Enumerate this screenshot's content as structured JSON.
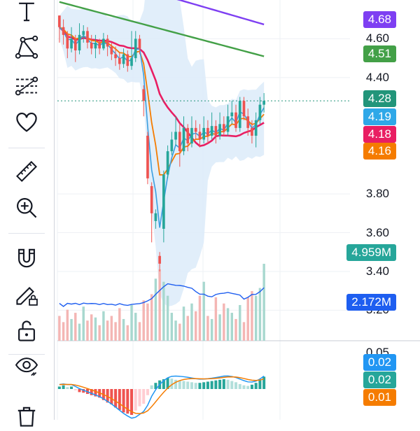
{
  "toolbar": {
    "tools": [
      {
        "name": "text-tool",
        "icon": "text-icon"
      },
      {
        "name": "pattern-tool",
        "icon": "pattern-icon"
      },
      {
        "name": "fib-tool",
        "icon": "fib-retracement-icon"
      },
      {
        "name": "favorites-tool",
        "icon": "heart-icon"
      },
      {
        "name": "measure-tool",
        "icon": "ruler-icon"
      },
      {
        "name": "zoom-tool",
        "icon": "zoom-in-icon"
      },
      {
        "name": "magnet-tool",
        "icon": "magnet-icon"
      },
      {
        "name": "lock-drawings-tool",
        "icon": "pencil-lock-icon"
      },
      {
        "name": "lock-all-tool",
        "icon": "unlock-icon"
      },
      {
        "name": "visibility-tool",
        "icon": "eye-icon"
      },
      {
        "name": "remove-tool",
        "icon": "trash-icon"
      }
    ]
  },
  "price_axis": {
    "ticks": [
      "4.60",
      "4.40",
      "3.80",
      "3.60",
      "3.40",
      "3.20"
    ],
    "tick_values": [
      4.6,
      4.4,
      3.8,
      3.6,
      3.4,
      3.2
    ],
    "range": [
      3.14,
      4.8
    ],
    "cut_label": "0.05"
  },
  "badges": [
    {
      "label": "4.68",
      "color": "#7e3ff2",
      "series": "upper-ma"
    },
    {
      "label": "4.51",
      "color": "#43a047",
      "series": "mid-ma"
    },
    {
      "label": "4.28",
      "color": "#22957a",
      "series": "last-price"
    },
    {
      "label": "4.19",
      "color": "#2fa8e8",
      "series": "fast-ma"
    },
    {
      "label": "4.18",
      "color": "#e91e63",
      "series": "slow-ma"
    },
    {
      "label": "4.16",
      "color": "#f57c00",
      "series": "orange-ma"
    },
    {
      "label": "4.959M",
      "color": "#26a69a",
      "series": "volume"
    },
    {
      "label": "2.172M",
      "color": "#1e5ef0",
      "series": "volume-ma"
    },
    {
      "label": "0.02",
      "color": "#2196f3",
      "series": "macd"
    },
    {
      "label": "0.02",
      "color": "#26a69a",
      "series": "histogram"
    },
    {
      "label": "0.01",
      "color": "#f57c00",
      "series": "signal"
    }
  ],
  "colors": {
    "up": "#26a69a",
    "down": "#ef5350",
    "band_fill": "#dcebf9",
    "purple_ma": "#7e3ff2",
    "green_ma": "#43a047",
    "red_ma": "#e91e63",
    "blue_ma": "#3b9fe0",
    "orange_ma": "#f57c00",
    "volume_ma": "#1e5ef0",
    "last_price_line": "#22957a"
  },
  "chart_data": {
    "type": "candlestick",
    "y_range": [
      3.14,
      4.8
    ],
    "last_price": 4.28,
    "candles": [
      [
        4.72,
        4.66,
        4.72,
        4.58
      ],
      [
        4.66,
        4.62,
        4.7,
        4.57
      ],
      [
        4.62,
        4.55,
        4.64,
        4.5
      ],
      [
        4.55,
        4.6,
        4.66,
        4.53
      ],
      [
        4.6,
        4.54,
        4.62,
        4.48
      ],
      [
        4.54,
        4.62,
        4.68,
        4.52
      ],
      [
        4.62,
        4.64,
        4.67,
        4.58
      ],
      [
        4.64,
        4.58,
        4.66,
        4.55
      ],
      [
        4.58,
        4.55,
        4.62,
        4.52
      ],
      [
        4.55,
        4.58,
        4.62,
        4.5
      ],
      [
        4.58,
        4.55,
        4.6,
        4.52
      ],
      [
        4.55,
        4.6,
        4.63,
        4.54
      ],
      [
        4.6,
        4.56,
        4.62,
        4.51
      ],
      [
        4.56,
        4.52,
        4.58,
        4.49
      ],
      [
        4.52,
        4.5,
        4.56,
        4.46
      ],
      [
        4.5,
        4.47,
        4.53,
        4.44
      ],
      [
        4.47,
        4.52,
        4.55,
        4.45
      ],
      [
        4.52,
        4.46,
        4.54,
        4.43
      ],
      [
        4.46,
        4.5,
        4.64,
        4.44
      ],
      [
        4.5,
        4.6,
        4.64,
        4.48
      ],
      [
        4.6,
        4.55,
        4.62,
        4.52
      ],
      [
        4.34,
        4.28,
        4.36,
        4.2
      ],
      [
        4.1,
        3.88,
        4.12,
        3.85
      ],
      [
        3.84,
        3.7,
        3.86,
        3.55
      ],
      [
        3.66,
        3.7,
        3.72,
        3.62
      ],
      [
        3.48,
        3.44,
        3.5,
        3.4
      ],
      [
        3.62,
        3.9,
        3.92,
        3.55
      ],
      [
        3.9,
        4.02,
        4.05,
        3.88
      ],
      [
        4.02,
        4.08,
        4.12,
        4.0
      ],
      [
        4.08,
        4.12,
        4.2,
        4.05
      ],
      [
        4.12,
        4.02,
        4.16,
        3.94
      ],
      [
        4.02,
        4.14,
        4.2,
        4.0
      ],
      [
        4.14,
        4.06,
        4.16,
        4.02
      ],
      [
        4.06,
        4.14,
        4.2,
        4.04
      ],
      [
        4.14,
        4.12,
        4.18,
        4.08
      ],
      [
        4.12,
        4.08,
        4.16,
        4.04
      ],
      [
        4.08,
        4.14,
        4.2,
        4.06
      ],
      [
        4.14,
        4.1,
        4.18,
        4.06
      ],
      [
        4.1,
        4.15,
        4.22,
        4.08
      ],
      [
        4.15,
        4.1,
        4.18,
        4.06
      ],
      [
        4.1,
        4.16,
        4.22,
        4.08
      ],
      [
        4.16,
        4.12,
        4.2,
        4.1
      ],
      [
        4.12,
        4.2,
        4.26,
        4.1
      ],
      [
        4.2,
        4.22,
        4.28,
        4.16
      ],
      [
        4.22,
        4.14,
        4.26,
        4.12
      ],
      [
        4.14,
        4.28,
        4.3,
        4.12
      ],
      [
        4.28,
        4.2,
        4.3,
        4.18
      ],
      [
        4.2,
        4.14,
        4.24,
        4.1
      ],
      [
        4.14,
        4.1,
        4.18,
        4.06
      ],
      [
        4.1,
        4.18,
        4.22,
        4.04
      ],
      [
        4.18,
        4.26,
        4.3,
        4.16
      ],
      [
        4.26,
        4.28,
        4.32,
        4.22
      ]
    ],
    "volume_range": [
      0,
      4.959
    ],
    "volume": [
      1.6,
      1.2,
      2.0,
      1.4,
      1.8,
      1.1,
      2.2,
      1.3,
      1.7,
      1.5,
      1.0,
      1.9,
      1.3,
      1.6,
      1.2,
      2.1,
      1.4,
      1.0,
      2.3,
      1.8,
      1.2,
      2.6,
      2.4,
      3.0,
      4.0,
      4.6,
      3.8,
      2.9,
      1.8,
      1.3,
      1.1,
      2.2,
      1.6,
      2.4,
      1.9,
      2.9,
      3.8,
      1.6,
      1.4,
      2.8,
      1.7,
      2.4,
      2.1,
      1.8,
      1.4,
      2.3,
      1.2,
      2.8,
      3.2,
      2.9,
      3.4,
      4.959
    ],
    "macd": {
      "range": [
        -0.05,
        0.05
      ],
      "histogram": [
        0.004,
        0.006,
        0.003,
        0.004,
        -0.002,
        -0.005,
        -0.006,
        -0.008,
        -0.01,
        -0.012,
        -0.014,
        -0.018,
        -0.022,
        -0.025,
        -0.03,
        -0.034,
        -0.038,
        -0.04,
        -0.042,
        -0.035,
        -0.028,
        -0.024,
        -0.01,
        0.006,
        0.01,
        0.014,
        0.016,
        0.018,
        0.017,
        0.015,
        0.014,
        0.013,
        0.012,
        0.011,
        0.01,
        0.01,
        0.011,
        0.012,
        0.013,
        0.014,
        0.015,
        0.016,
        0.015,
        0.013,
        0.011,
        0.008,
        0.006,
        0.005,
        0.007,
        0.01,
        0.015,
        0.02
      ]
    }
  }
}
